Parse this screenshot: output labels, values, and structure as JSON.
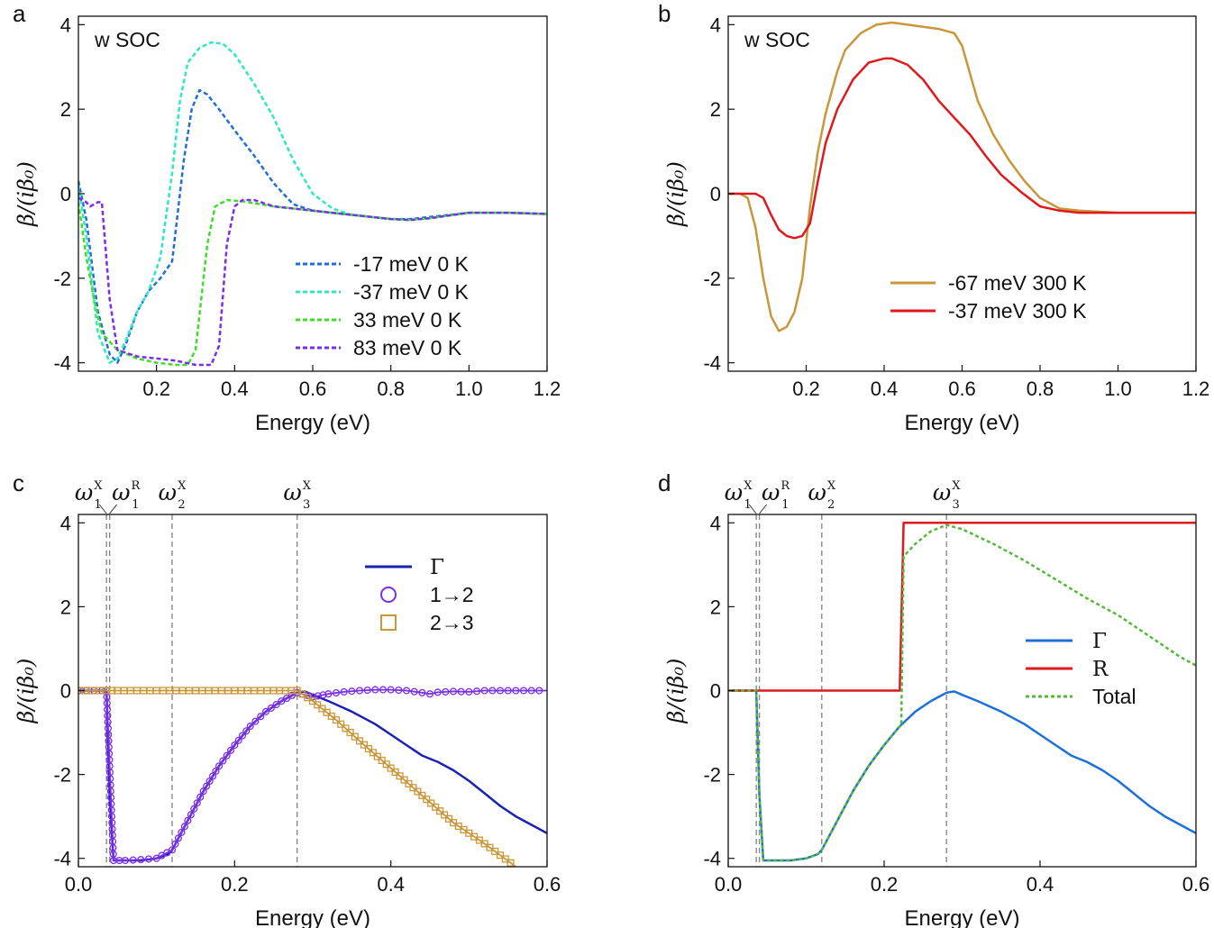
{
  "figure": {
    "description": "Four-panel chart of beta/(i beta0) versus energy"
  },
  "chart_data": [
    {
      "id": "a",
      "panel_label": "a",
      "type": "line",
      "title": "",
      "annotation": "w SOC",
      "xlabel": "Energy (eV)",
      "ylabel": "β/(iβ₀)",
      "xlim": [
        0.0,
        1.2
      ],
      "ylim": [
        -4.2,
        4.2
      ],
      "xticks": [
        0.2,
        0.4,
        0.6,
        0.8,
        1.0,
        1.2
      ],
      "xtick_labels": [
        "0.2",
        "0.4",
        "0.6",
        "0.8",
        "1.0",
        "1.2"
      ],
      "yticks": [
        -4,
        -2,
        0,
        2,
        4
      ],
      "ytick_labels": [
        "-4",
        "-2",
        "0",
        "2",
        "4"
      ],
      "legend_position": "lower-right",
      "series": [
        {
          "name": "-17 meV 0 K",
          "color": "#1f6fd8",
          "style": "dashed",
          "x": [
            0.0,
            0.02,
            0.05,
            0.08,
            0.1,
            0.12,
            0.15,
            0.18,
            0.21,
            0.24,
            0.27,
            0.29,
            0.31,
            0.33,
            0.36,
            0.4,
            0.45,
            0.5,
            0.55,
            0.6,
            0.7,
            0.8,
            0.85,
            0.9,
            0.95,
            1.0,
            1.1,
            1.2
          ],
          "y": [
            0.3,
            -0.6,
            -2.8,
            -3.8,
            -4.0,
            -3.6,
            -2.8,
            -2.3,
            -2.0,
            -1.6,
            0.8,
            2.0,
            2.45,
            2.35,
            2.0,
            1.5,
            0.9,
            0.25,
            -0.25,
            -0.4,
            -0.5,
            -0.6,
            -0.6,
            -0.55,
            -0.5,
            -0.45,
            -0.45,
            -0.48
          ]
        },
        {
          "name": "-37 meV 0 K",
          "color": "#2ee8c2",
          "style": "dashed",
          "x": [
            0.0,
            0.02,
            0.05,
            0.08,
            0.1,
            0.12,
            0.15,
            0.18,
            0.21,
            0.24,
            0.26,
            0.28,
            0.31,
            0.34,
            0.37,
            0.4,
            0.45,
            0.5,
            0.55,
            0.6,
            0.65,
            0.7,
            0.8,
            0.85,
            0.9,
            1.0,
            1.1,
            1.2
          ],
          "y": [
            0.2,
            -1.0,
            -3.3,
            -4.0,
            -3.9,
            -3.5,
            -2.8,
            -2.3,
            -1.5,
            0.5,
            2.2,
            3.1,
            3.45,
            3.58,
            3.55,
            3.3,
            2.6,
            1.8,
            0.8,
            0.0,
            -0.35,
            -0.5,
            -0.6,
            -0.62,
            -0.58,
            -0.45,
            -0.45,
            -0.48
          ]
        },
        {
          "name": "33 meV 0 K",
          "color": "#3fdc2a",
          "style": "dashed",
          "x": [
            0.0,
            0.02,
            0.04,
            0.06,
            0.08,
            0.1,
            0.15,
            0.2,
            0.25,
            0.28,
            0.3,
            0.33,
            0.35,
            0.38,
            0.42,
            0.5,
            0.6,
            0.7,
            0.8,
            0.85,
            0.9,
            1.0,
            1.1,
            1.2
          ],
          "y": [
            -0.2,
            -1.5,
            -2.5,
            -3.3,
            -3.5,
            -3.7,
            -3.9,
            -4.0,
            -4.05,
            -4.05,
            -3.7,
            -1.2,
            -0.3,
            -0.15,
            -0.18,
            -0.3,
            -0.4,
            -0.5,
            -0.6,
            -0.62,
            -0.58,
            -0.45,
            -0.45,
            -0.48
          ]
        },
        {
          "name": "83 meV 0 K",
          "color": "#7a2ee8",
          "style": "dashed",
          "x": [
            0.0,
            0.02,
            0.03,
            0.05,
            0.06,
            0.08,
            0.1,
            0.15,
            0.2,
            0.25,
            0.3,
            0.34,
            0.36,
            0.38,
            0.4,
            0.42,
            0.45,
            0.5,
            0.6,
            0.7,
            0.8,
            0.85,
            0.9,
            1.0,
            1.1,
            1.2
          ],
          "y": [
            -0.1,
            -0.2,
            -0.3,
            -0.2,
            -0.2,
            -2.5,
            -3.7,
            -3.85,
            -3.9,
            -3.95,
            -4.05,
            -4.05,
            -3.6,
            -1.2,
            -0.3,
            -0.15,
            -0.15,
            -0.3,
            -0.4,
            -0.5,
            -0.6,
            -0.62,
            -0.58,
            -0.45,
            -0.45,
            -0.48
          ]
        }
      ]
    },
    {
      "id": "b",
      "panel_label": "b",
      "type": "line",
      "title": "",
      "annotation": "w SOC",
      "xlabel": "Energy (eV)",
      "ylabel": "β/(iβ₀)",
      "xlim": [
        0.0,
        1.2
      ],
      "ylim": [
        -4.2,
        4.2
      ],
      "xticks": [
        0.2,
        0.4,
        0.6,
        0.8,
        1.0,
        1.2
      ],
      "xtick_labels": [
        "0.2",
        "0.4",
        "0.6",
        "0.8",
        "1.0",
        "1.2"
      ],
      "yticks": [
        -4,
        -2,
        0,
        2,
        4
      ],
      "ytick_labels": [
        "-4",
        "-2",
        "0",
        "2",
        "4"
      ],
      "legend_position": "center-right",
      "series": [
        {
          "name": "-67 meV 300 K",
          "color": "#c9963a",
          "style": "solid",
          "x": [
            0.0,
            0.03,
            0.05,
            0.07,
            0.09,
            0.11,
            0.13,
            0.15,
            0.17,
            0.19,
            0.21,
            0.23,
            0.25,
            0.28,
            0.3,
            0.34,
            0.38,
            0.42,
            0.46,
            0.5,
            0.54,
            0.58,
            0.6,
            0.64,
            0.68,
            0.72,
            0.76,
            0.8,
            0.85,
            0.9,
            1.0,
            1.1,
            1.2
          ],
          "y": [
            0.0,
            0.0,
            -0.1,
            -0.8,
            -2.0,
            -2.9,
            -3.25,
            -3.15,
            -2.8,
            -2.0,
            -0.3,
            1.0,
            1.9,
            2.9,
            3.4,
            3.8,
            4.0,
            4.05,
            4.0,
            3.95,
            3.9,
            3.8,
            3.5,
            2.2,
            1.4,
            0.8,
            0.3,
            -0.1,
            -0.35,
            -0.4,
            -0.45,
            -0.45,
            -0.45
          ]
        },
        {
          "name": "-37 meV 300 K",
          "color": "#e0191c",
          "style": "solid",
          "x": [
            0.0,
            0.05,
            0.07,
            0.09,
            0.11,
            0.13,
            0.15,
            0.17,
            0.19,
            0.21,
            0.23,
            0.25,
            0.28,
            0.32,
            0.36,
            0.4,
            0.42,
            0.46,
            0.5,
            0.54,
            0.58,
            0.62,
            0.66,
            0.7,
            0.75,
            0.8,
            0.85,
            0.9,
            1.0,
            1.1,
            1.2
          ],
          "y": [
            0.0,
            0.0,
            0.0,
            -0.1,
            -0.5,
            -0.85,
            -1.0,
            -1.05,
            -1.0,
            -0.7,
            0.3,
            1.2,
            2.0,
            2.7,
            3.1,
            3.2,
            3.2,
            3.05,
            2.7,
            2.2,
            1.8,
            1.4,
            0.9,
            0.45,
            0.05,
            -0.3,
            -0.4,
            -0.45,
            -0.45,
            -0.45,
            -0.45
          ]
        }
      ]
    },
    {
      "id": "c",
      "panel_label": "c",
      "type": "line",
      "title": "",
      "xlabel": "Energy (eV)",
      "ylabel": "β/(iβ₀)",
      "xlim": [
        0.0,
        0.6
      ],
      "ylim": [
        -4.2,
        4.2
      ],
      "xticks": [
        0.0,
        0.2,
        0.4,
        0.6
      ],
      "xtick_labels": [
        "0.0",
        "0.2",
        "0.4",
        "0.6"
      ],
      "yticks": [
        -4,
        -2,
        0,
        2,
        4
      ],
      "ytick_labels": [
        "-4",
        "-2",
        "0",
        "2",
        "4"
      ],
      "legend_position": "upper-right",
      "vlines": [
        {
          "x": 0.036,
          "base": "ω",
          "sup": "X",
          "sub": "1"
        },
        {
          "x": 0.04,
          "base": "ω",
          "sup": "R",
          "sub": "1"
        },
        {
          "x": 0.12,
          "base": "ω",
          "sup": "X",
          "sub": "2"
        },
        {
          "x": 0.28,
          "base": "ω",
          "sup": "X",
          "sub": "3"
        }
      ],
      "series": [
        {
          "name": "Γ",
          "color": "#1a23b0",
          "style": "solid",
          "x": [
            0.0,
            0.036,
            0.04,
            0.045,
            0.06,
            0.08,
            0.1,
            0.115,
            0.12,
            0.14,
            0.16,
            0.18,
            0.2,
            0.22,
            0.24,
            0.26,
            0.27,
            0.28,
            0.29,
            0.3,
            0.32,
            0.35,
            0.38,
            0.4,
            0.42,
            0.44,
            0.46,
            0.48,
            0.5,
            0.52,
            0.54,
            0.56,
            0.58,
            0.6
          ],
          "y": [
            0.0,
            0.0,
            -2.5,
            -4.05,
            -4.05,
            -4.05,
            -4.0,
            -3.9,
            -3.8,
            -3.1,
            -2.4,
            -1.8,
            -1.3,
            -0.85,
            -0.5,
            -0.25,
            -0.15,
            -0.05,
            -0.02,
            -0.1,
            -0.25,
            -0.5,
            -0.8,
            -1.05,
            -1.3,
            -1.55,
            -1.7,
            -1.9,
            -2.15,
            -2.45,
            -2.75,
            -3.0,
            -3.2,
            -3.4
          ]
        },
        {
          "name": "1→2",
          "color": "#7a2ee8",
          "marker": "circle",
          "x": [
            0.0,
            0.01,
            0.02,
            0.03,
            0.036,
            0.045,
            0.06,
            0.08,
            0.1,
            0.12,
            0.14,
            0.16,
            0.18,
            0.2,
            0.22,
            0.24,
            0.26,
            0.28,
            0.3,
            0.32,
            0.34,
            0.36,
            0.38,
            0.4,
            0.42,
            0.44,
            0.45,
            0.46,
            0.48,
            0.5,
            0.52,
            0.54,
            0.56,
            0.58,
            0.6
          ],
          "y": [
            0.0,
            0.0,
            0.0,
            0.0,
            0.0,
            -4.05,
            -4.05,
            -4.03,
            -4.0,
            -3.8,
            -3.1,
            -2.4,
            -1.8,
            -1.3,
            -0.85,
            -0.5,
            -0.25,
            -0.05,
            -0.15,
            -0.08,
            -0.03,
            0.0,
            0.02,
            0.02,
            0.0,
            -0.05,
            -0.08,
            -0.04,
            -0.02,
            -0.03,
            0.0,
            0.0,
            0.0,
            0.0,
            0.0
          ]
        },
        {
          "name": "2→3",
          "color": "#c9963a",
          "marker": "square",
          "x": [
            0.0,
            0.036,
            0.05,
            0.1,
            0.15,
            0.2,
            0.25,
            0.28,
            0.3,
            0.33,
            0.36,
            0.4,
            0.44,
            0.48,
            0.52,
            0.56
          ],
          "y": [
            0.0,
            0.0,
            0.0,
            0.0,
            0.0,
            0.0,
            0.0,
            0.0,
            -0.25,
            -0.7,
            -1.2,
            -1.85,
            -2.5,
            -3.15,
            -3.65,
            -4.2
          ]
        }
      ]
    },
    {
      "id": "d",
      "panel_label": "d",
      "type": "line",
      "title": "",
      "xlabel": "Energy (eV)",
      "ylabel": "β/(iβ₀)",
      "xlim": [
        0.0,
        0.6
      ],
      "ylim": [
        -4.2,
        4.2
      ],
      "xticks": [
        0.0,
        0.2,
        0.4,
        0.6
      ],
      "xtick_labels": [
        "0.0",
        "0.2",
        "0.4",
        "0.6"
      ],
      "yticks": [
        -4,
        -2,
        0,
        2,
        4
      ],
      "ytick_labels": [
        "-4",
        "-2",
        "0",
        "2",
        "4"
      ],
      "legend_position": "center-right",
      "vlines": [
        {
          "x": 0.036,
          "base": "ω",
          "sup": "X",
          "sub": "1"
        },
        {
          "x": 0.04,
          "base": "ω",
          "sup": "R",
          "sub": "1"
        },
        {
          "x": 0.12,
          "base": "ω",
          "sup": "X",
          "sub": "2"
        },
        {
          "x": 0.28,
          "base": "ω",
          "sup": "X",
          "sub": "3"
        }
      ],
      "series": [
        {
          "name": "Γ",
          "color": "#1f6fd8",
          "style": "solid",
          "x": [
            0.0,
            0.036,
            0.04,
            0.045,
            0.06,
            0.08,
            0.1,
            0.115,
            0.12,
            0.14,
            0.16,
            0.18,
            0.2,
            0.22,
            0.24,
            0.26,
            0.27,
            0.28,
            0.29,
            0.3,
            0.32,
            0.35,
            0.38,
            0.4,
            0.42,
            0.44,
            0.46,
            0.48,
            0.5,
            0.52,
            0.54,
            0.56,
            0.58,
            0.6
          ],
          "y": [
            0.0,
            0.0,
            -2.5,
            -4.05,
            -4.05,
            -4.05,
            -4.0,
            -3.9,
            -3.8,
            -3.1,
            -2.4,
            -1.8,
            -1.3,
            -0.85,
            -0.5,
            -0.25,
            -0.15,
            -0.05,
            -0.02,
            -0.1,
            -0.25,
            -0.5,
            -0.8,
            -1.05,
            -1.3,
            -1.55,
            -1.7,
            -1.9,
            -2.15,
            -2.45,
            -2.75,
            -3.0,
            -3.2,
            -3.4
          ]
        },
        {
          "name": "R",
          "color": "#e0191c",
          "style": "solid",
          "x": [
            0.0,
            0.04,
            0.22,
            0.225,
            0.6
          ],
          "y": [
            0.0,
            0.0,
            0.0,
            4.0,
            4.0
          ]
        },
        {
          "name": "Total",
          "color": "#55b83a",
          "style": "dotted",
          "x": [
            0.0,
            0.036,
            0.04,
            0.045,
            0.06,
            0.08,
            0.1,
            0.115,
            0.12,
            0.14,
            0.16,
            0.18,
            0.2,
            0.22,
            0.222,
            0.225,
            0.24,
            0.26,
            0.28,
            0.3,
            0.34,
            0.38,
            0.42,
            0.46,
            0.5,
            0.54,
            0.58,
            0.6
          ],
          "y": [
            0.0,
            0.0,
            -2.5,
            -4.05,
            -4.05,
            -4.05,
            -4.0,
            -3.9,
            -3.8,
            -3.1,
            -2.4,
            -1.8,
            -1.3,
            -0.85,
            -0.85,
            3.2,
            3.5,
            3.8,
            3.95,
            3.85,
            3.5,
            3.1,
            2.65,
            2.2,
            1.8,
            1.3,
            0.8,
            0.6
          ]
        }
      ]
    }
  ]
}
